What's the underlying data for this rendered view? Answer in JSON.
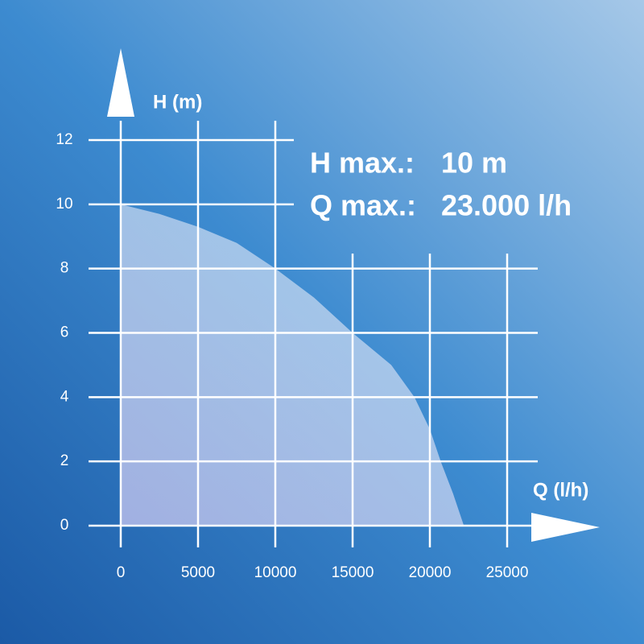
{
  "chart_data": {
    "type": "area",
    "x_label": "Q (l/h)",
    "y_label": "H (m)",
    "annotations": [
      [
        "H max.:",
        "10 m"
      ],
      [
        "Q max.:",
        "23.000 l/h"
      ]
    ],
    "x": [
      0,
      2500,
      5000,
      7500,
      10000,
      12500,
      15000,
      17500,
      19000,
      20000,
      20700,
      21500,
      22200
    ],
    "values": [
      10,
      9.7,
      9.3,
      8.8,
      8,
      7.1,
      6,
      5,
      4,
      3,
      2,
      1,
      0
    ],
    "color": "#ffffff",
    "xlim": [
      0,
      25000
    ],
    "xticks": [
      0,
      5000,
      10000,
      15000,
      20000,
      25000
    ],
    "ylim": [
      0,
      12
    ],
    "yticks": [
      0,
      2,
      4,
      6,
      8,
      10,
      12
    ],
    "grid": true
  }
}
